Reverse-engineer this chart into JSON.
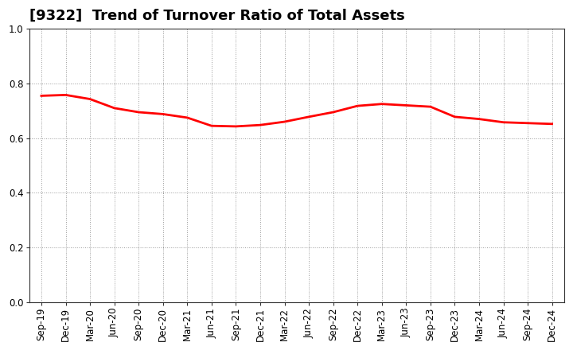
{
  "title": "[9322]  Trend of Turnover Ratio of Total Assets",
  "x_labels": [
    "Sep-19",
    "Dec-19",
    "Mar-20",
    "Jun-20",
    "Sep-20",
    "Dec-20",
    "Mar-21",
    "Jun-21",
    "Sep-21",
    "Dec-21",
    "Mar-22",
    "Jun-22",
    "Sep-22",
    "Dec-22",
    "Mar-23",
    "Jun-23",
    "Sep-23",
    "Dec-23",
    "Mar-24",
    "Jun-24",
    "Sep-24",
    "Dec-24"
  ],
  "values": [
    0.755,
    0.758,
    0.743,
    0.71,
    0.695,
    0.688,
    0.675,
    0.645,
    0.643,
    0.648,
    0.66,
    0.678,
    0.695,
    0.718,
    0.725,
    0.72,
    0.715,
    0.678,
    0.67,
    0.658,
    0.655,
    0.652
  ],
  "line_color": "#FF0000",
  "line_width": 2.0,
  "ylim": [
    0.0,
    1.0
  ],
  "yticks": [
    0.0,
    0.2,
    0.4,
    0.6,
    0.8,
    1.0
  ],
  "background_color": "#ffffff",
  "grid_color": "#999999",
  "title_fontsize": 13,
  "tick_fontsize": 8.5
}
